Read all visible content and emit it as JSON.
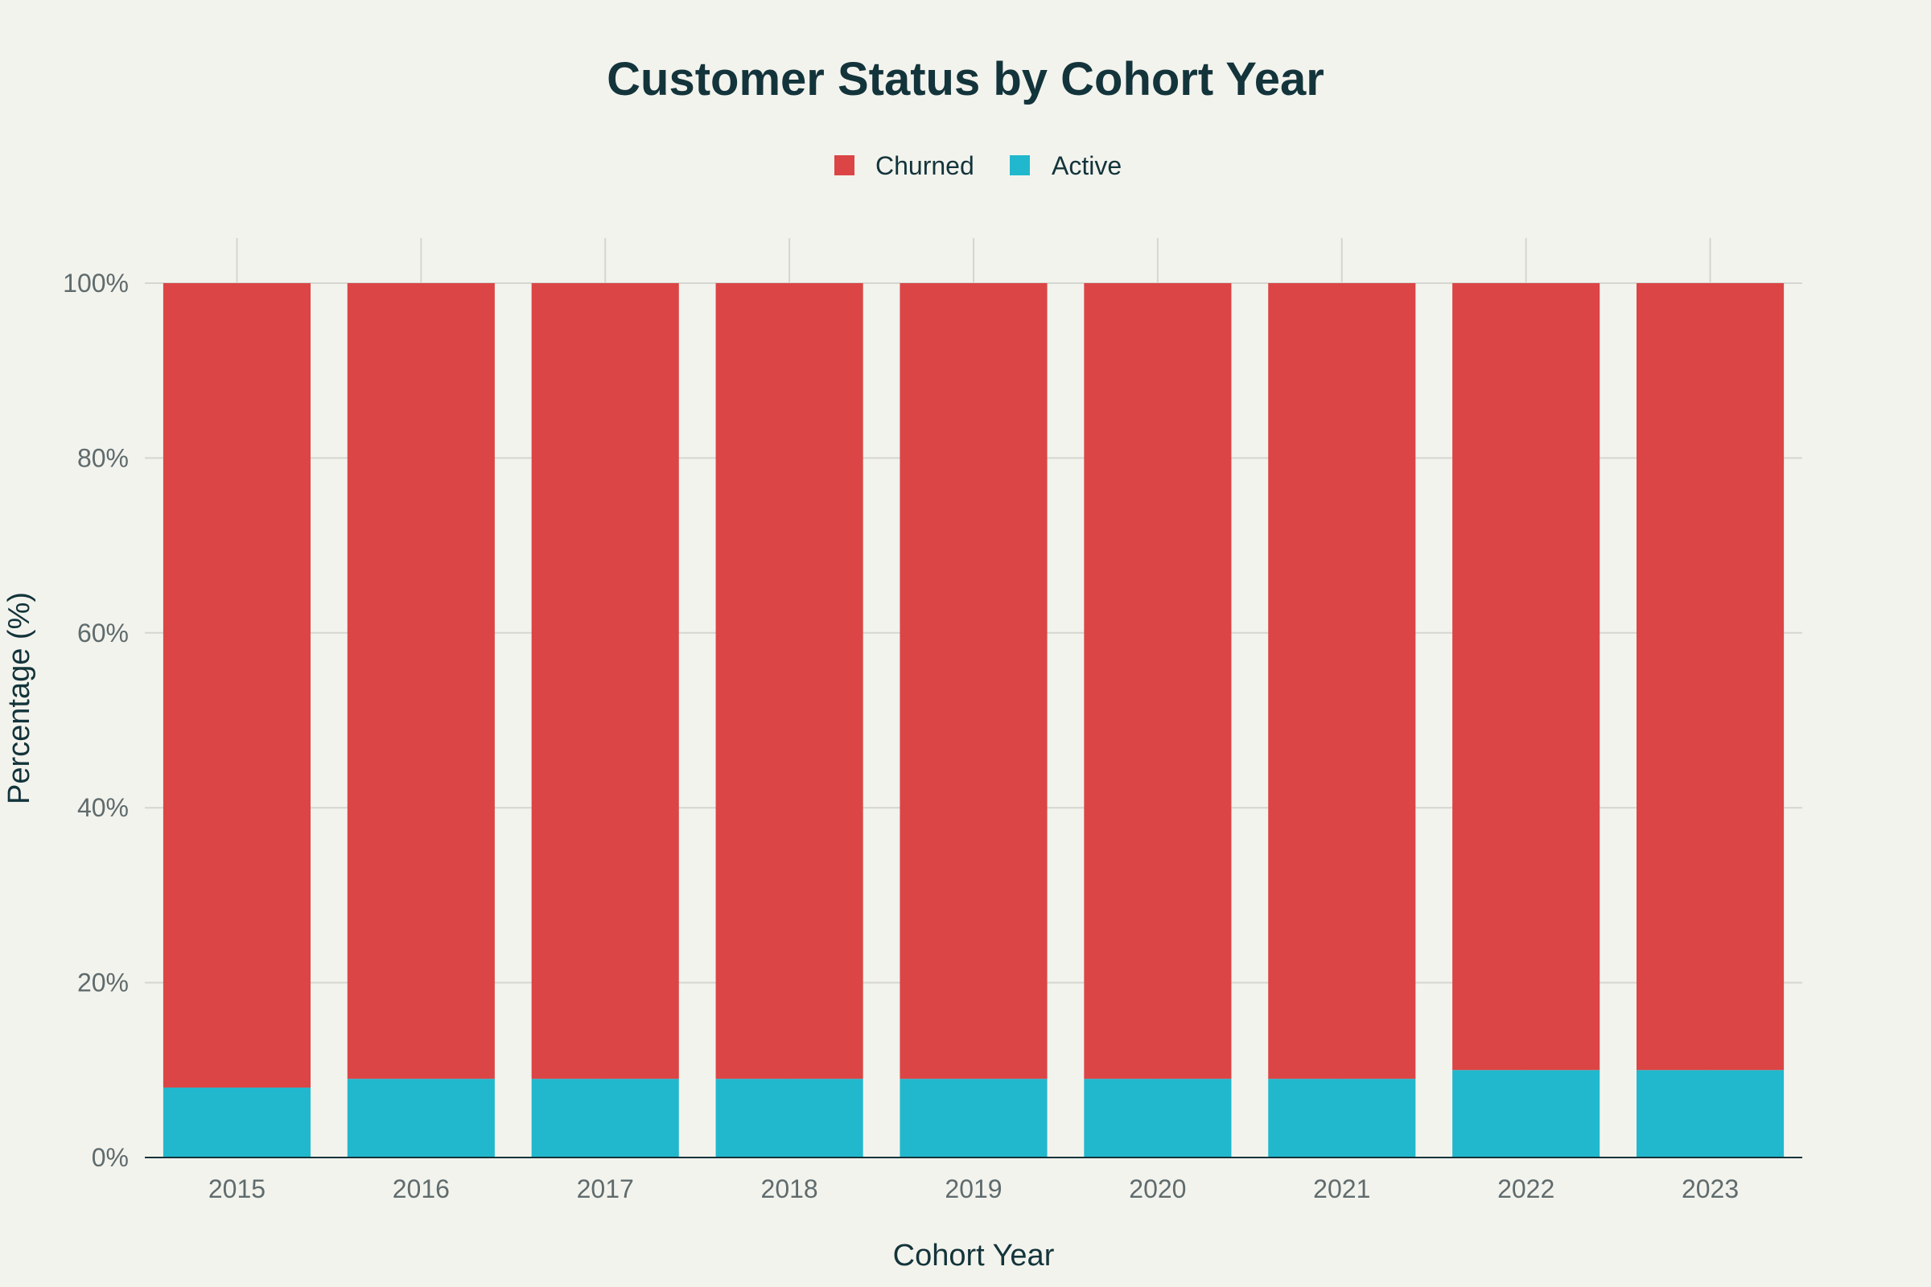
{
  "chart_data": {
    "type": "bar",
    "stacked": true,
    "title": "Customer Status by Cohort Year",
    "xlabel": "Cohort Year",
    "ylabel": "Percentage (%)",
    "ylim": [
      0,
      100
    ],
    "yticks": [
      0,
      20,
      40,
      60,
      80,
      100
    ],
    "ytick_labels": [
      "0%",
      "20%",
      "40%",
      "60%",
      "80%",
      "100%"
    ],
    "categories": [
      "2015",
      "2016",
      "2017",
      "2018",
      "2019",
      "2020",
      "2021",
      "2022",
      "2023"
    ],
    "series": [
      {
        "name": "Active",
        "color": "#21b8cd",
        "values": [
          8,
          9,
          9,
          9,
          9,
          9,
          9,
          10,
          10
        ]
      },
      {
        "name": "Churned",
        "color": "#db4545",
        "values": [
          92,
          91,
          91,
          91,
          91,
          91,
          91,
          90,
          90
        ]
      }
    ],
    "legend": {
      "position": "top-center",
      "order": [
        "Churned",
        "Active"
      ]
    },
    "grid": true
  }
}
